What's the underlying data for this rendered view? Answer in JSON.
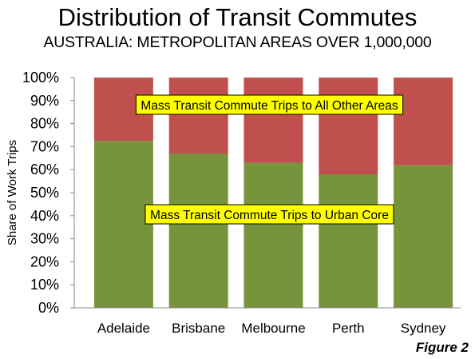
{
  "chart_data": {
    "type": "bar",
    "stacked": true,
    "title": "Distribution of Transit Commutes",
    "subtitle": "AUSTRALIA: METROPOLITAN AREAS OVER 1,000,000",
    "ylabel": "Share of Work Trips",
    "xlabel": "",
    "ylim": [
      0,
      100
    ],
    "yticks": [
      "0%",
      "10%",
      "20%",
      "30%",
      "40%",
      "50%",
      "60%",
      "70%",
      "80%",
      "90%",
      "100%"
    ],
    "categories": [
      "Adelaide",
      "Brisbane",
      "Melbourne",
      "Perth",
      "Sydney"
    ],
    "series": [
      {
        "name": "Mass Transit Commute Trips to Urban Core",
        "color": "#77933c",
        "values": [
          72.5,
          67,
          63,
          58,
          62
        ]
      },
      {
        "name": "Mass Transit Commute Trips to All Other Areas",
        "color": "#c0504d",
        "values": [
          27.5,
          33,
          37,
          42,
          38
        ]
      }
    ],
    "annotations": [
      {
        "text": "Mass Transit Commute Trips to All Other Areas",
        "series": 1
      },
      {
        "text": "Mass Transit Commute Trips to Urban Core",
        "series": 0
      }
    ],
    "grid": false,
    "legend": "none"
  },
  "figure_label": "Figure 2"
}
